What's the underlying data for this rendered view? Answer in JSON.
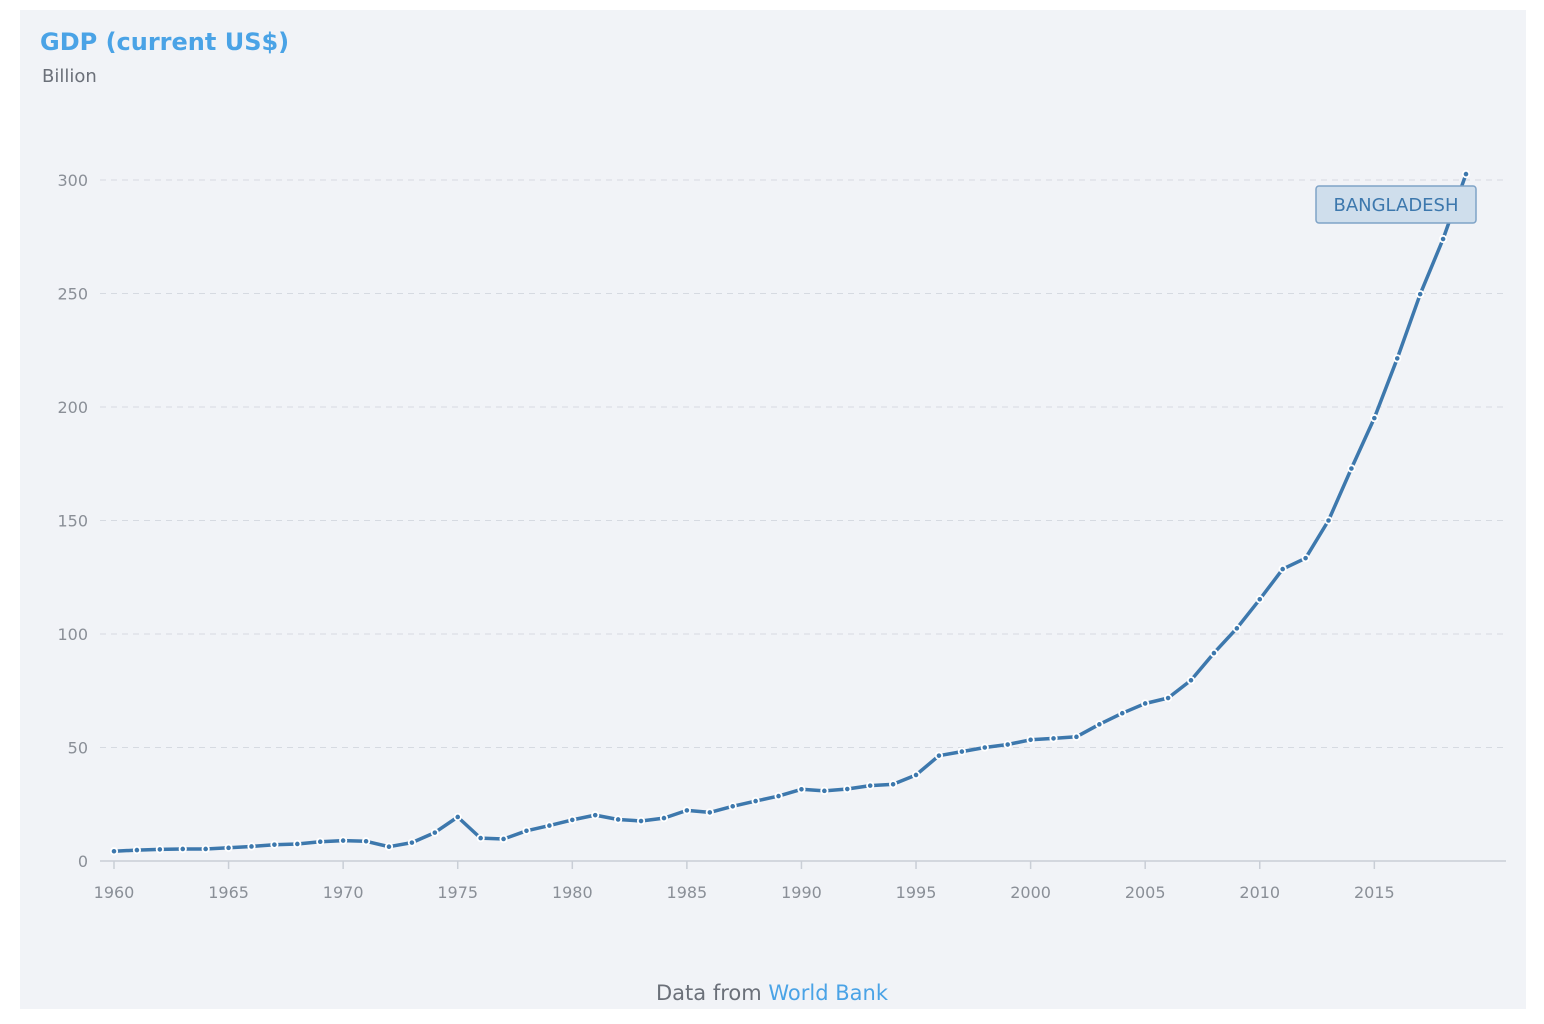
{
  "header": {
    "title": "GDP (current US$)",
    "unit": "Billion"
  },
  "footer": {
    "prefix": "Data from",
    "source": "World Bank"
  },
  "colors": {
    "line": "#3d78ad",
    "accent": "#4aa3e6",
    "grid": "#d6dae1",
    "background": "#f1f3f7"
  },
  "chart_data": {
    "type": "line",
    "title": "GDP (current US$)",
    "ylabel": "Billion",
    "xlabel": "",
    "xlim": [
      1960,
      2019
    ],
    "ylim": [
      0,
      300
    ],
    "yticks": [
      0,
      50,
      100,
      150,
      200,
      250,
      300
    ],
    "xticks": [
      1960,
      1965,
      1970,
      1975,
      1980,
      1985,
      1990,
      1995,
      2000,
      2005,
      2010,
      2015
    ],
    "grid": true,
    "legend": "series label at end of line",
    "series": [
      {
        "name": "BANGLADESH",
        "x": [
          1960,
          1961,
          1962,
          1963,
          1964,
          1965,
          1966,
          1967,
          1968,
          1969,
          1970,
          1971,
          1972,
          1973,
          1974,
          1975,
          1976,
          1977,
          1978,
          1979,
          1980,
          1981,
          1982,
          1983,
          1984,
          1985,
          1986,
          1987,
          1988,
          1989,
          1990,
          1991,
          1992,
          1993,
          1994,
          1995,
          1996,
          1997,
          1998,
          1999,
          2000,
          2001,
          2002,
          2003,
          2004,
          2005,
          2006,
          2007,
          2008,
          2009,
          2010,
          2011,
          2012,
          2013,
          2014,
          2015,
          2016,
          2017,
          2018,
          2019
        ],
        "y": [
          4.3,
          4.8,
          5.1,
          5.3,
          5.3,
          5.8,
          6.4,
          7.2,
          7.5,
          8.5,
          9.0,
          8.7,
          6.3,
          8.1,
          12.5,
          19.4,
          10.1,
          9.7,
          13.3,
          15.6,
          18.1,
          20.2,
          18.3,
          17.6,
          18.9,
          22.3,
          21.4,
          24.1,
          26.4,
          28.6,
          31.6,
          30.9,
          31.7,
          33.2,
          33.8,
          37.9,
          46.4,
          48.2,
          50.0,
          51.3,
          53.4,
          54.0,
          54.7,
          60.2,
          65.1,
          69.4,
          71.8,
          79.6,
          91.6,
          102.5,
          115.3,
          128.6,
          133.4,
          150.0,
          172.9,
          195.1,
          221.4,
          249.7,
          274.0,
          302.6
        ]
      }
    ]
  }
}
